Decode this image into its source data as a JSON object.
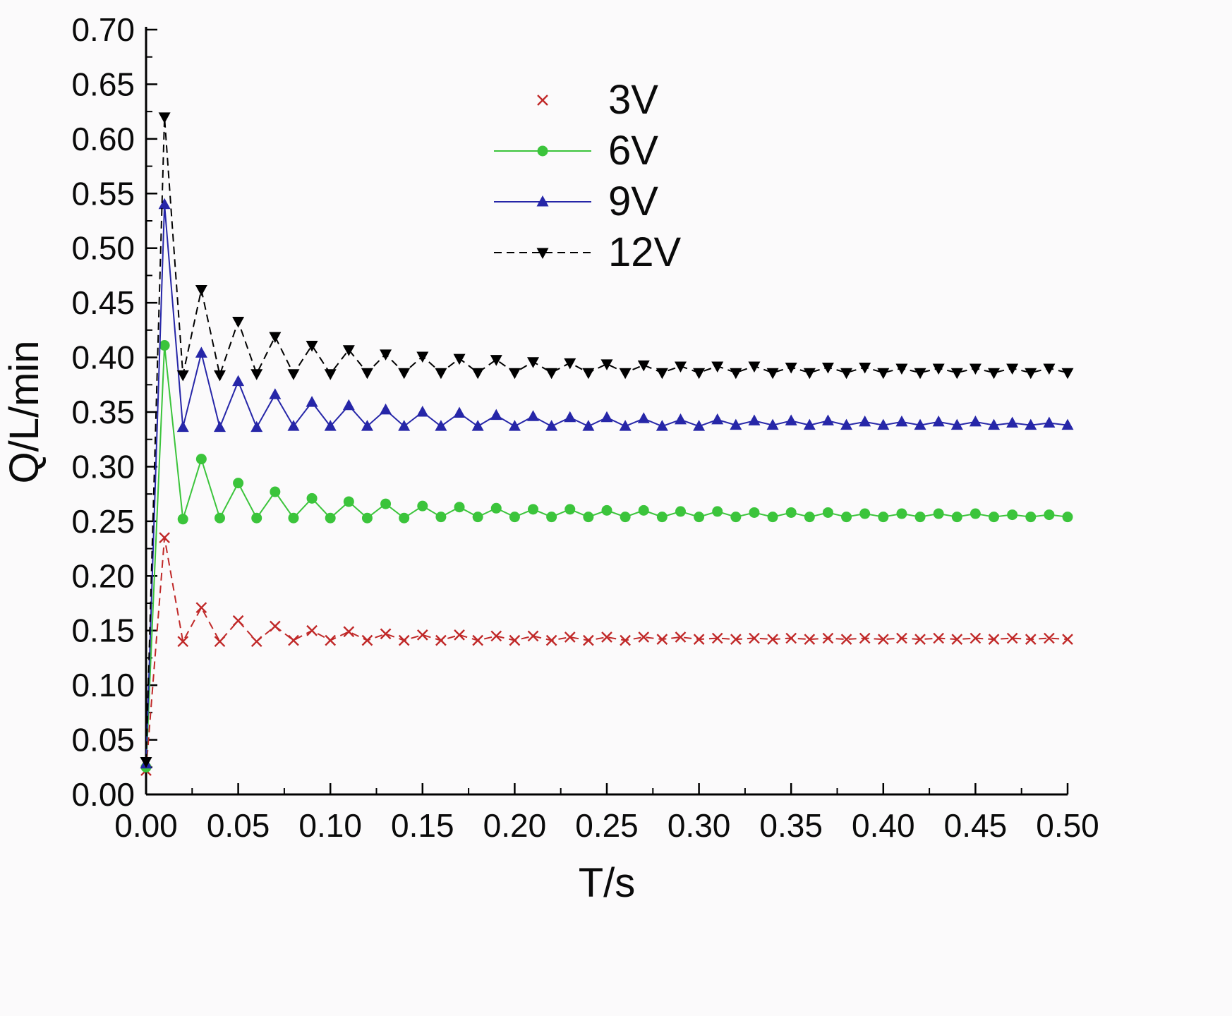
{
  "chart_data": {
    "type": "line",
    "title": "",
    "xlabel": "T/s",
    "ylabel": "Q/L/min",
    "xlim": [
      0,
      0.5
    ],
    "ylim": [
      0,
      0.7
    ],
    "grid": false,
    "legend_position": "top-center-inside",
    "x_tick_labels": [
      "0.00",
      "0.05",
      "0.10",
      "0.15",
      "0.20",
      "0.25",
      "0.30",
      "0.35",
      "0.40",
      "0.45",
      "0.50"
    ],
    "x_tick_values": [
      0,
      0.05,
      0.1,
      0.15,
      0.2,
      0.25,
      0.3,
      0.35,
      0.4,
      0.45,
      0.5
    ],
    "y_tick_labels": [
      "0.00",
      "0.05",
      "0.10",
      "0.15",
      "0.20",
      "0.25",
      "0.30",
      "0.35",
      "0.40",
      "0.45",
      "0.50",
      "0.55",
      "0.60",
      "0.65",
      "0.70"
    ],
    "y_tick_values": [
      0,
      0.05,
      0.1,
      0.15,
      0.2,
      0.25,
      0.3,
      0.35,
      0.4,
      0.45,
      0.5,
      0.55,
      0.6,
      0.65,
      0.7
    ],
    "x": [
      0,
      0.01,
      0.02,
      0.03,
      0.04,
      0.05,
      0.06,
      0.07,
      0.08,
      0.09,
      0.1,
      0.11,
      0.12,
      0.13,
      0.14,
      0.15,
      0.16,
      0.17,
      0.18,
      0.19,
      0.2,
      0.21,
      0.22,
      0.23,
      0.24,
      0.25,
      0.26,
      0.27,
      0.28,
      0.29,
      0.3,
      0.31,
      0.32,
      0.33,
      0.34,
      0.35,
      0.36,
      0.37,
      0.38,
      0.39,
      0.4,
      0.41,
      0.42,
      0.43,
      0.44,
      0.45,
      0.46,
      0.47,
      0.48,
      0.49,
      0.5
    ],
    "series": [
      {
        "name": "3V",
        "color": "#c02828",
        "marker": "x",
        "line_style": "dashed",
        "values": [
          0.022,
          0.235,
          0.14,
          0.171,
          0.14,
          0.159,
          0.14,
          0.154,
          0.141,
          0.15,
          0.141,
          0.149,
          0.141,
          0.147,
          0.141,
          0.146,
          0.141,
          0.146,
          0.141,
          0.145,
          0.141,
          0.145,
          0.141,
          0.144,
          0.141,
          0.144,
          0.141,
          0.144,
          0.142,
          0.144,
          0.142,
          0.143,
          0.142,
          0.143,
          0.142,
          0.143,
          0.142,
          0.143,
          0.142,
          0.143,
          0.142,
          0.143,
          0.142,
          0.143,
          0.142,
          0.143,
          0.142,
          0.143,
          0.142,
          0.143,
          0.142
        ]
      },
      {
        "name": "6V",
        "color": "#3bc43b",
        "marker": "circle",
        "line_style": "solid",
        "values": [
          0.025,
          0.411,
          0.252,
          0.307,
          0.253,
          0.285,
          0.253,
          0.277,
          0.253,
          0.271,
          0.253,
          0.268,
          0.253,
          0.266,
          0.253,
          0.264,
          0.254,
          0.263,
          0.254,
          0.262,
          0.254,
          0.261,
          0.254,
          0.261,
          0.254,
          0.26,
          0.254,
          0.26,
          0.254,
          0.259,
          0.254,
          0.259,
          0.254,
          0.258,
          0.254,
          0.258,
          0.254,
          0.258,
          0.254,
          0.257,
          0.254,
          0.257,
          0.254,
          0.257,
          0.254,
          0.257,
          0.254,
          0.256,
          0.254,
          0.256,
          0.254
        ]
      },
      {
        "name": "9V",
        "color": "#2626a8",
        "marker": "triangle-up",
        "line_style": "solid",
        "values": [
          0.028,
          0.54,
          0.336,
          0.404,
          0.336,
          0.378,
          0.336,
          0.366,
          0.337,
          0.359,
          0.337,
          0.356,
          0.337,
          0.352,
          0.337,
          0.35,
          0.337,
          0.349,
          0.337,
          0.347,
          0.337,
          0.346,
          0.337,
          0.345,
          0.337,
          0.345,
          0.337,
          0.344,
          0.337,
          0.343,
          0.337,
          0.343,
          0.338,
          0.342,
          0.338,
          0.342,
          0.338,
          0.342,
          0.338,
          0.341,
          0.338,
          0.341,
          0.338,
          0.341,
          0.338,
          0.341,
          0.338,
          0.34,
          0.338,
          0.34,
          0.338
        ]
      },
      {
        "name": "12V",
        "color": "#000000",
        "marker": "triangle-down",
        "line_style": "dashed",
        "values": [
          0.03,
          0.62,
          0.384,
          0.462,
          0.384,
          0.433,
          0.385,
          0.419,
          0.385,
          0.411,
          0.385,
          0.407,
          0.386,
          0.403,
          0.386,
          0.401,
          0.386,
          0.399,
          0.386,
          0.398,
          0.386,
          0.396,
          0.386,
          0.395,
          0.386,
          0.394,
          0.386,
          0.393,
          0.386,
          0.392,
          0.386,
          0.392,
          0.386,
          0.392,
          0.386,
          0.391,
          0.386,
          0.391,
          0.386,
          0.391,
          0.386,
          0.39,
          0.386,
          0.39,
          0.386,
          0.39,
          0.386,
          0.39,
          0.386,
          0.39,
          0.386
        ]
      }
    ]
  }
}
